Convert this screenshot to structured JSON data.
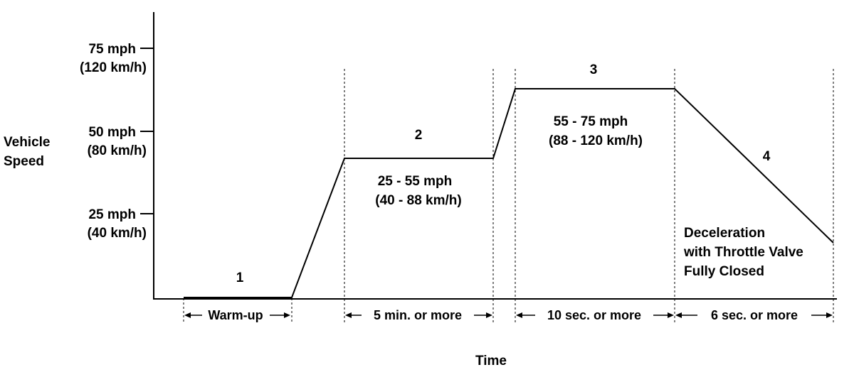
{
  "y_axis": {
    "title_line1": "Vehicle",
    "title_line2": "Speed",
    "ticks": [
      {
        "mph": "75 mph",
        "kmh": "(120 km/h)",
        "speed": 75
      },
      {
        "mph": "50 mph",
        "kmh": "(80 km/h)",
        "speed": 50
      },
      {
        "mph": "25 mph",
        "kmh": "(40 km/h)",
        "speed": 25
      }
    ]
  },
  "x_axis": {
    "title": "Time"
  },
  "phases": [
    {
      "number": "1",
      "duration_label": "Warm-up"
    },
    {
      "number": "2",
      "range_line1": "25 - 55 mph",
      "range_line2": "(40 - 88 km/h)",
      "duration_label": "5 min. or more"
    },
    {
      "number": "3",
      "range_line1": "55 - 75 mph",
      "range_line2": "(88 - 120 km/h)",
      "duration_label": "10 sec. or more"
    },
    {
      "number": "4",
      "note_line1": "Deceleration",
      "note_line2": "with Throttle Valve",
      "note_line3": "Fully Closed",
      "duration_label": "6 sec. or more"
    }
  ],
  "speed_profile_mph": [
    0,
    0,
    0,
    40,
    40,
    65,
    65,
    18
  ]
}
